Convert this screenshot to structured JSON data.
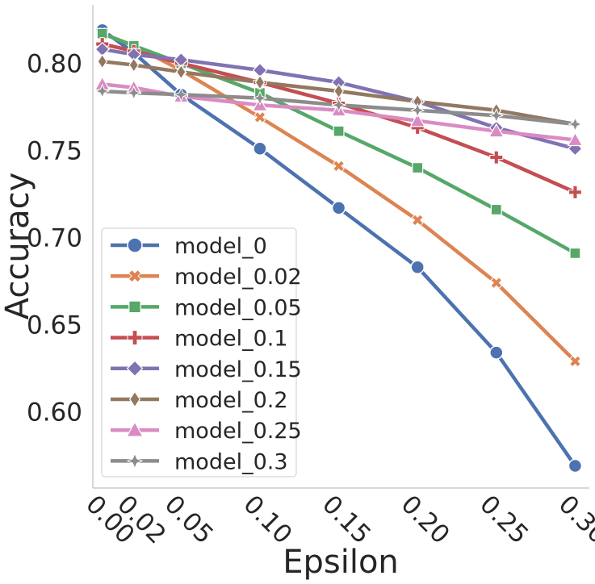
{
  "chart_data": {
    "type": "line",
    "title": "",
    "xlabel": "Epsilon",
    "ylabel": "Accuracy",
    "x": [
      0.0,
      0.02,
      0.05,
      0.1,
      0.15,
      0.2,
      0.25,
      0.3
    ],
    "x_tick_labels": [
      "0.00",
      "0.02",
      "0.05",
      "0.10",
      "0.15",
      "0.20",
      "0.25",
      "0.30"
    ],
    "y_ticks": [
      0.6,
      0.65,
      0.7,
      0.75,
      0.8
    ],
    "y_tick_labels": [
      "0.60",
      "0.65",
      "0.70",
      "0.75",
      "0.80"
    ],
    "xlim": [
      -0.006,
      0.309
    ],
    "ylim": [
      0.5563,
      0.8335
    ],
    "grid": false,
    "legend_position": "lower-left",
    "series": [
      {
        "name": "model_0",
        "color": "#4c72b0",
        "marker": "circle",
        "values": [
          0.819,
          0.806,
          0.782,
          0.751,
          0.717,
          0.683,
          0.634,
          0.569
        ]
      },
      {
        "name": "model_0.02",
        "color": "#dd8452",
        "marker": "x",
        "values": [
          0.817,
          0.81,
          0.796,
          0.769,
          0.741,
          0.71,
          0.674,
          0.629
        ]
      },
      {
        "name": "model_0.05",
        "color": "#55a868",
        "marker": "square",
        "values": [
          0.817,
          0.81,
          0.8,
          0.783,
          0.761,
          0.74,
          0.716,
          0.691
        ]
      },
      {
        "name": "model_0.1",
        "color": "#c44e52",
        "marker": "plus",
        "values": [
          0.811,
          0.807,
          0.8,
          0.789,
          0.777,
          0.763,
          0.746,
          0.726
        ]
      },
      {
        "name": "model_0.15",
        "color": "#8172b3",
        "marker": "diamond",
        "values": [
          0.808,
          0.805,
          0.802,
          0.796,
          0.789,
          0.778,
          0.763,
          0.751
        ]
      },
      {
        "name": "model_0.2",
        "color": "#937860",
        "marker": "thin_diamond",
        "values": [
          0.801,
          0.799,
          0.795,
          0.789,
          0.784,
          0.778,
          0.773,
          0.765
        ]
      },
      {
        "name": "model_0.25",
        "color": "#da8bc3",
        "marker": "triangle",
        "values": [
          0.788,
          0.786,
          0.781,
          0.776,
          0.773,
          0.767,
          0.761,
          0.756
        ]
      },
      {
        "name": "model_0.3",
        "color": "#8c8c8c",
        "marker": "star",
        "values": [
          0.784,
          0.783,
          0.782,
          0.78,
          0.776,
          0.773,
          0.77,
          0.765
        ]
      }
    ]
  }
}
